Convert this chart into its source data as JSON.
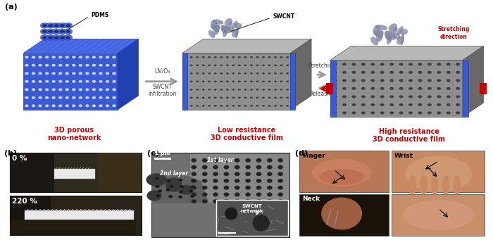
{
  "fig_width": 7.0,
  "fig_height": 3.41,
  "dpi": 100,
  "background_color": "#ffffff",
  "panel_a_label": "(a)",
  "panel_b_label": "(b)",
  "panel_c_label": "(c)",
  "panel_d_label": "(d)",
  "label1": "3D porous\nnano-network",
  "label2": "Low resistance\n3D conductive film",
  "label3": "High resistance\n3D conductive film",
  "arrow1_text1": "UV/O₃",
  "arrow1_text2": "SWCNT\ninfiltration",
  "arrow2_text1": "Stretching",
  "arrow2_text2": "Releasing",
  "pdms_label": "PDMS",
  "swcnt_label": "SWCNT",
  "stretching_label": "Stretching\ndirection",
  "b_top_label": "0 %",
  "b_bot_label": "220 %",
  "c_scale": "1 μm",
  "c_layer1": "1st layer",
  "c_layer2": "2nd layer",
  "c_network": "SWCNT\nnetwork",
  "d_finger": "Finger",
  "d_wrist": "Wrist",
  "d_neck": "Neck",
  "red_color": "#cc0000",
  "gray_arrow_color": "#999999",
  "blue_pdms": "#3a5ad4",
  "blue_side": "#2040b0",
  "blue_top": "#4a6ae8",
  "cnf_front": "#909090",
  "cnf_top": "#b8b8b8",
  "cnf_right": "#686868",
  "label_fontsize": 7,
  "sublabel_fontsize": 8,
  "red_label_fontsize": 6.5
}
